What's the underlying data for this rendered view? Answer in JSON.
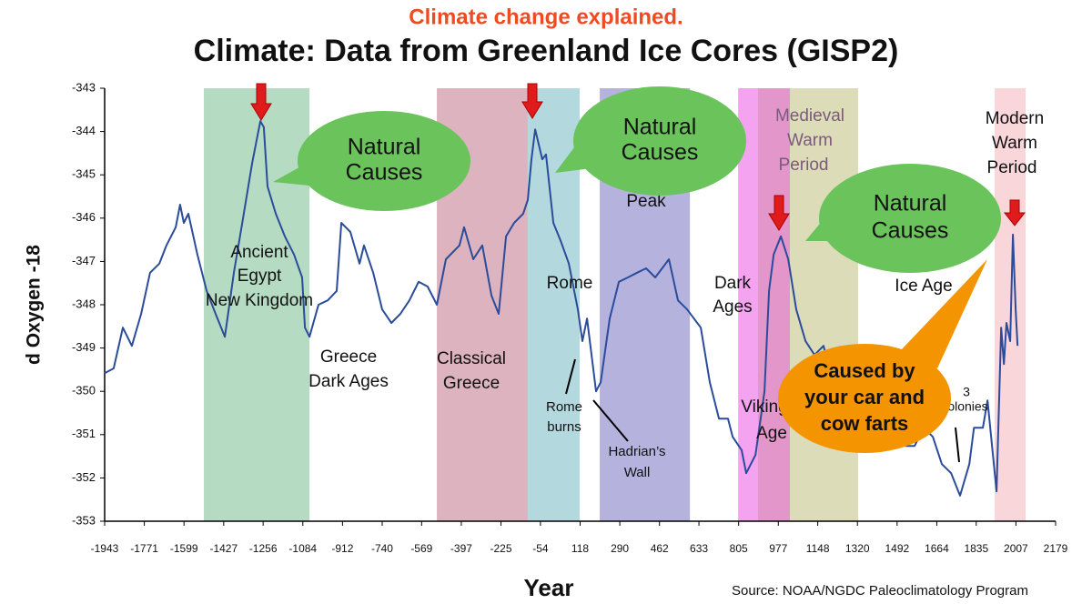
{
  "chart_data": {
    "type": "line",
    "header": "Climate change explained.",
    "title": "Climate: Data from Greenland Ice Cores (GISP2)",
    "ylabel": "d Oxygen -18",
    "xlabel": "Year",
    "source": "Source: NOAA/NGDC Paleoclimatology Program",
    "color": "#2b4b9b",
    "xlim": [
      -1943,
      2179
    ],
    "xticks": [
      -1943,
      -1771,
      -1599,
      -1427,
      -1256,
      -1084,
      -912,
      -740,
      -569,
      -397,
      -225,
      -54,
      118,
      290,
      462,
      633,
      805,
      977,
      1148,
      1320,
      1492,
      1664,
      1835,
      2007,
      2179
    ],
    "ylim": [
      -353,
      -343
    ],
    "yticks": [
      -353,
      -352,
      -351,
      -350,
      -349,
      -348,
      -347,
      -346,
      -345,
      -344,
      -343
    ],
    "x": [
      -1943,
      -1904,
      -1864,
      -1825,
      -1785,
      -1746,
      -1706,
      -1675,
      -1635,
      -1616,
      -1600,
      -1580,
      -1541,
      -1501,
      -1462,
      -1422,
      -1383,
      -1343,
      -1304,
      -1268,
      -1253,
      -1237,
      -1201,
      -1162,
      -1122,
      -1087,
      -1075,
      -1055,
      -1016,
      -976,
      -937,
      -917,
      -878,
      -838,
      -819,
      -779,
      -740,
      -700,
      -661,
      -622,
      -582,
      -543,
      -503,
      -464,
      -405,
      -385,
      -345,
      -306,
      -266,
      -235,
      -203,
      -168,
      -129,
      -109,
      -93,
      -77,
      -46,
      -30,
      2,
      34,
      69,
      108,
      128,
      148,
      187,
      207,
      246,
      286,
      325,
      365,
      404,
      444,
      503,
      542,
      582,
      641,
      680,
      720,
      759,
      779,
      818,
      838,
      878,
      917,
      937,
      957,
      988,
      1020,
      1055,
      1095,
      1134,
      1173,
      1213,
      1252,
      1292,
      1331,
      1371,
      1410,
      1450,
      1489,
      1529,
      1568,
      1607,
      1647,
      1686,
      1726,
      1765,
      1805,
      1825,
      1864,
      1884,
      1923,
      1943,
      1955,
      1966,
      1982,
      1994,
      2006,
      2014
    ],
    "values": [
      -349.58,
      -349.47,
      -348.53,
      -348.95,
      -348.21,
      -347.26,
      -347.05,
      -346.63,
      -346.21,
      -345.69,
      -346.11,
      -345.9,
      -346.84,
      -347.68,
      -348.21,
      -348.74,
      -347.26,
      -346.0,
      -344.74,
      -343.76,
      -343.9,
      -345.27,
      -345.9,
      -346.42,
      -346.84,
      -347.37,
      -348.53,
      -348.74,
      -348.0,
      -347.9,
      -347.68,
      -346.11,
      -346.32,
      -347.05,
      -346.63,
      -347.26,
      -348.11,
      -348.42,
      -348.21,
      -347.9,
      -347.47,
      -347.58,
      -348.0,
      -346.95,
      -346.63,
      -346.21,
      -346.95,
      -346.63,
      -347.79,
      -348.21,
      -346.42,
      -346.11,
      -345.9,
      -345.58,
      -344.64,
      -343.95,
      -344.64,
      -344.53,
      -346.11,
      -346.53,
      -347.05,
      -348.11,
      -348.84,
      -348.32,
      -350.0,
      -349.79,
      -348.32,
      -347.47,
      -347.37,
      -347.26,
      -347.16,
      -347.37,
      -346.95,
      -347.9,
      -348.11,
      -348.53,
      -349.79,
      -350.63,
      -350.63,
      -351.05,
      -351.36,
      -351.89,
      -351.47,
      -350.0,
      -347.68,
      -346.84,
      -346.42,
      -346.95,
      -348.11,
      -348.84,
      -349.16,
      -348.95,
      -349.79,
      -350.63,
      -350.84,
      -351.05,
      -350.52,
      -350.0,
      -350.21,
      -350.84,
      -351.26,
      -351.26,
      -350.84,
      -351.05,
      -351.68,
      -351.89,
      -352.41,
      -351.68,
      -350.84,
      -350.84,
      -350.21,
      -352.31,
      -348.53,
      -349.37,
      -348.42,
      -348.84,
      -346.38,
      -348.11,
      -348.95
    ],
    "bands": [
      {
        "x": [
          -1513,
          -1055
        ],
        "color": "#b5dcc3"
      },
      {
        "x": [
          -503,
          -109
        ],
        "color": "#dcb3bf"
      },
      {
        "x": [
          -109,
          116
        ],
        "color": "#b3d9de"
      },
      {
        "x": [
          203,
          594
        ],
        "color": "#b5b3de"
      },
      {
        "x": [
          803,
          889
        ],
        "color": "#f3a3f0"
      },
      {
        "x": [
          889,
          1028
        ],
        "color": "#e296ca"
      },
      {
        "x": [
          1028,
          1323
        ],
        "color": "#dddcb9"
      },
      {
        "x": [
          1915,
          2049
        ],
        "color": "#f9d6da"
      }
    ],
    "annotations": [
      [
        "Ancient",
        "Egypt",
        "New Kingdom"
      ],
      [
        "Greece",
        "Dark Ages"
      ],
      [
        "Classical",
        "Greece"
      ],
      [
        "Rome"
      ],
      [
        "Rome",
        "burns"
      ],
      [
        "Hadrian’s",
        "Wall"
      ],
      [
        "Peak"
      ],
      [
        "Dark",
        "Ages"
      ],
      [
        "Viking",
        "Age"
      ],
      [
        "Medieval",
        "Warm",
        "Period"
      ],
      [
        "Ice Age"
      ],
      [
        "3",
        "colonies"
      ],
      [
        "Modern",
        "Warm",
        "Period"
      ]
    ],
    "callouts": [
      [
        "Natural",
        "Causes"
      ],
      [
        "Natural",
        "Causes"
      ],
      [
        "Natural",
        "Causes"
      ],
      [
        "Caused by",
        "your car and",
        "cow farts"
      ]
    ]
  }
}
